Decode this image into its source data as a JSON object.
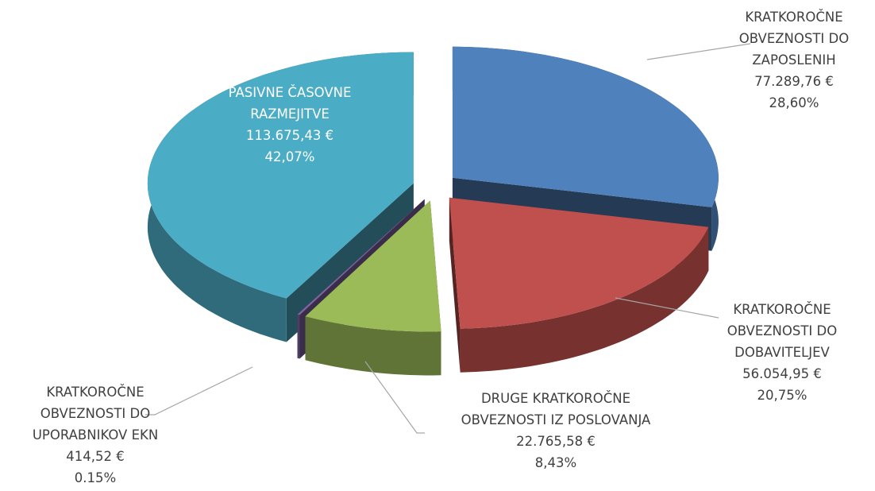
{
  "chart_data": {
    "type": "pie3d",
    "categories": [
      "KRATKOROČNE\nOBVEZNOSTI DO\nZAPOSLENIH",
      "KRATKOROČNE\nOBVEZNOSTI DO\nDOBAVITELJEV",
      "DRUGE KRATKOROČNE\nOBVEZNOSTI IZ POSLOVANJA",
      "KRATKOROČNE\nOBVEZNOSTI DO\nUPORABNIKOV EKN",
      "PASIVNE ČASOVNE\nRAZMEJITVE"
    ],
    "values": [
      77289.76,
      56054.95,
      22765.58,
      414.52,
      113675.43
    ],
    "value_labels": [
      "77.289,76 €",
      "56.054,95 €",
      "22.765,58 €",
      "414,52 €",
      "113.675,43 €"
    ],
    "percentages": [
      28.6,
      20.75,
      8.43,
      0.15,
      42.07
    ],
    "percentage_labels": [
      "28,60%",
      "20,75%",
      "8,43%",
      "0.15%",
      "42,07%"
    ],
    "colors": [
      "#4f81bd",
      "#c0504d",
      "#9bbb59",
      "#8064a2",
      "#4bacc6"
    ]
  }
}
